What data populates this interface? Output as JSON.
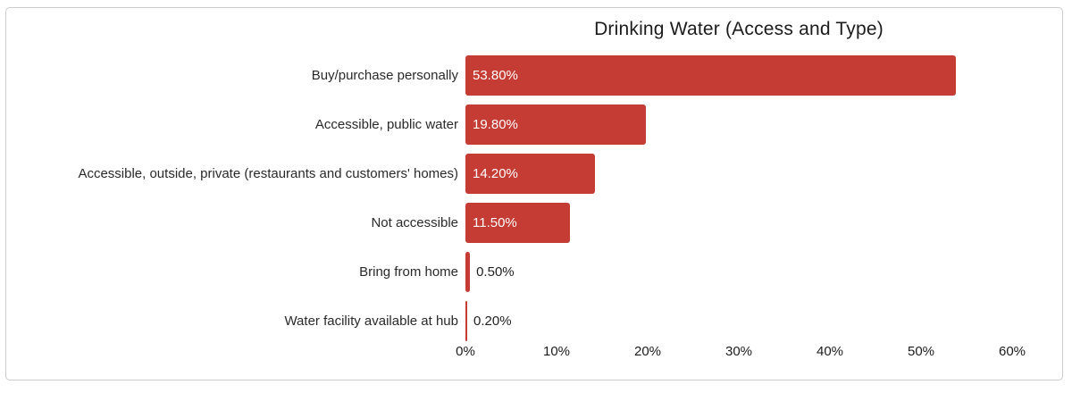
{
  "frame": {
    "background": "#ffffff",
    "border_color": "#cccccc"
  },
  "chart_data": {
    "type": "bar",
    "orientation": "horizontal",
    "title": "Drinking Water (Access and Type)",
    "categories": [
      "Buy/purchase personally",
      "Accessible, public water",
      "Accessible, outside, private (restaurants and customers' homes)",
      "Not accessible",
      "Bring from home",
      "Water facility available at hub"
    ],
    "values": [
      53.8,
      19.8,
      14.2,
      11.5,
      0.5,
      0.2
    ],
    "value_labels": [
      "53.80%",
      "19.80%",
      "14.20%",
      "11.50%",
      "0.50%",
      "0.20%"
    ],
    "x_ticks": [
      "0%",
      "10%",
      "20%",
      "30%",
      "40%",
      "50%",
      "60%"
    ],
    "x_tick_values": [
      0,
      10,
      20,
      30,
      40,
      50,
      60
    ],
    "xlim": [
      0,
      60
    ],
    "xlabel": "",
    "ylabel": "",
    "grid": false,
    "legend": null,
    "bar_color": "#c43c34",
    "value_label_inside_color": "#ffffff",
    "value_label_outside_color": "#1f1f1f",
    "inside_label_min_value": 5
  }
}
